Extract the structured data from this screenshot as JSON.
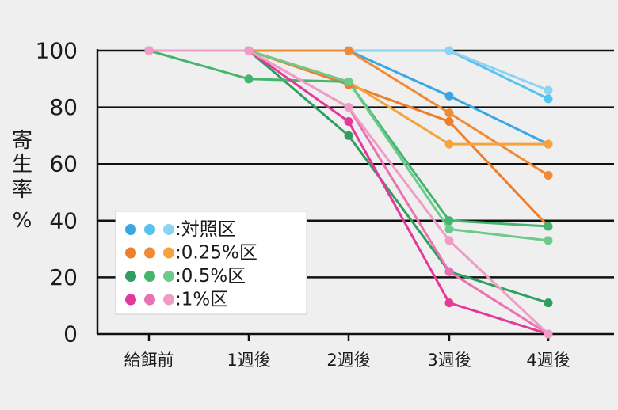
{
  "chart_data": {
    "type": "line",
    "ylabel": "寄生率%",
    "ylabel_chars": [
      "寄",
      "生",
      "率",
      "%"
    ],
    "ylim": [
      0,
      100
    ],
    "yticks": [
      0,
      20,
      40,
      60,
      80,
      100
    ],
    "categories": [
      "給餌前",
      "1週後",
      "2週後",
      "3週後",
      "4週後"
    ],
    "grid": "horizontal",
    "legend_position": "lower-left",
    "legend": [
      {
        "label": ":対照区",
        "colors": [
          "#3aa6e3",
          "#56c3ee",
          "#8ed3f3"
        ]
      },
      {
        "label": ":0.25%区",
        "colors": [
          "#ee7d2d",
          "#f08a36",
          "#f5a33b"
        ]
      },
      {
        "label": ":0.5%区",
        "colors": [
          "#2f9e5e",
          "#45b56e",
          "#6dca8d"
        ]
      },
      {
        "label": ":1%区",
        "colors": [
          "#e2399a",
          "#ea72b3",
          "#f19cc5"
        ]
      }
    ],
    "series": [
      {
        "color": "#3aa6e3",
        "values": [
          100,
          100,
          100,
          84,
          67
        ]
      },
      {
        "color": "#56c3ee",
        "values": [
          100,
          100,
          100,
          100,
          83
        ]
      },
      {
        "color": "#8ed3f3",
        "values": [
          100,
          100,
          100,
          100,
          86
        ]
      },
      {
        "color": "#ee7d2d",
        "values": [
          100,
          100,
          88,
          75,
          38
        ]
      },
      {
        "color": "#f08a36",
        "values": [
          100,
          100,
          100,
          78,
          56
        ]
      },
      {
        "color": "#f5a33b",
        "values": [
          100,
          100,
          89,
          67,
          67
        ]
      },
      {
        "color": "#2f9e5e",
        "values": [
          100,
          100,
          70,
          22,
          11
        ]
      },
      {
        "color": "#45b56e",
        "values": [
          100,
          90,
          89,
          40,
          38
        ]
      },
      {
        "color": "#6dca8d",
        "values": [
          100,
          100,
          89,
          37,
          33
        ]
      },
      {
        "color": "#e2399a",
        "values": [
          100,
          100,
          75,
          11,
          0
        ]
      },
      {
        "color": "#ea72b3",
        "values": [
          100,
          100,
          80,
          22,
          0
        ]
      },
      {
        "color": "#f19cc5",
        "values": [
          100,
          100,
          80,
          33,
          0
        ]
      }
    ]
  }
}
